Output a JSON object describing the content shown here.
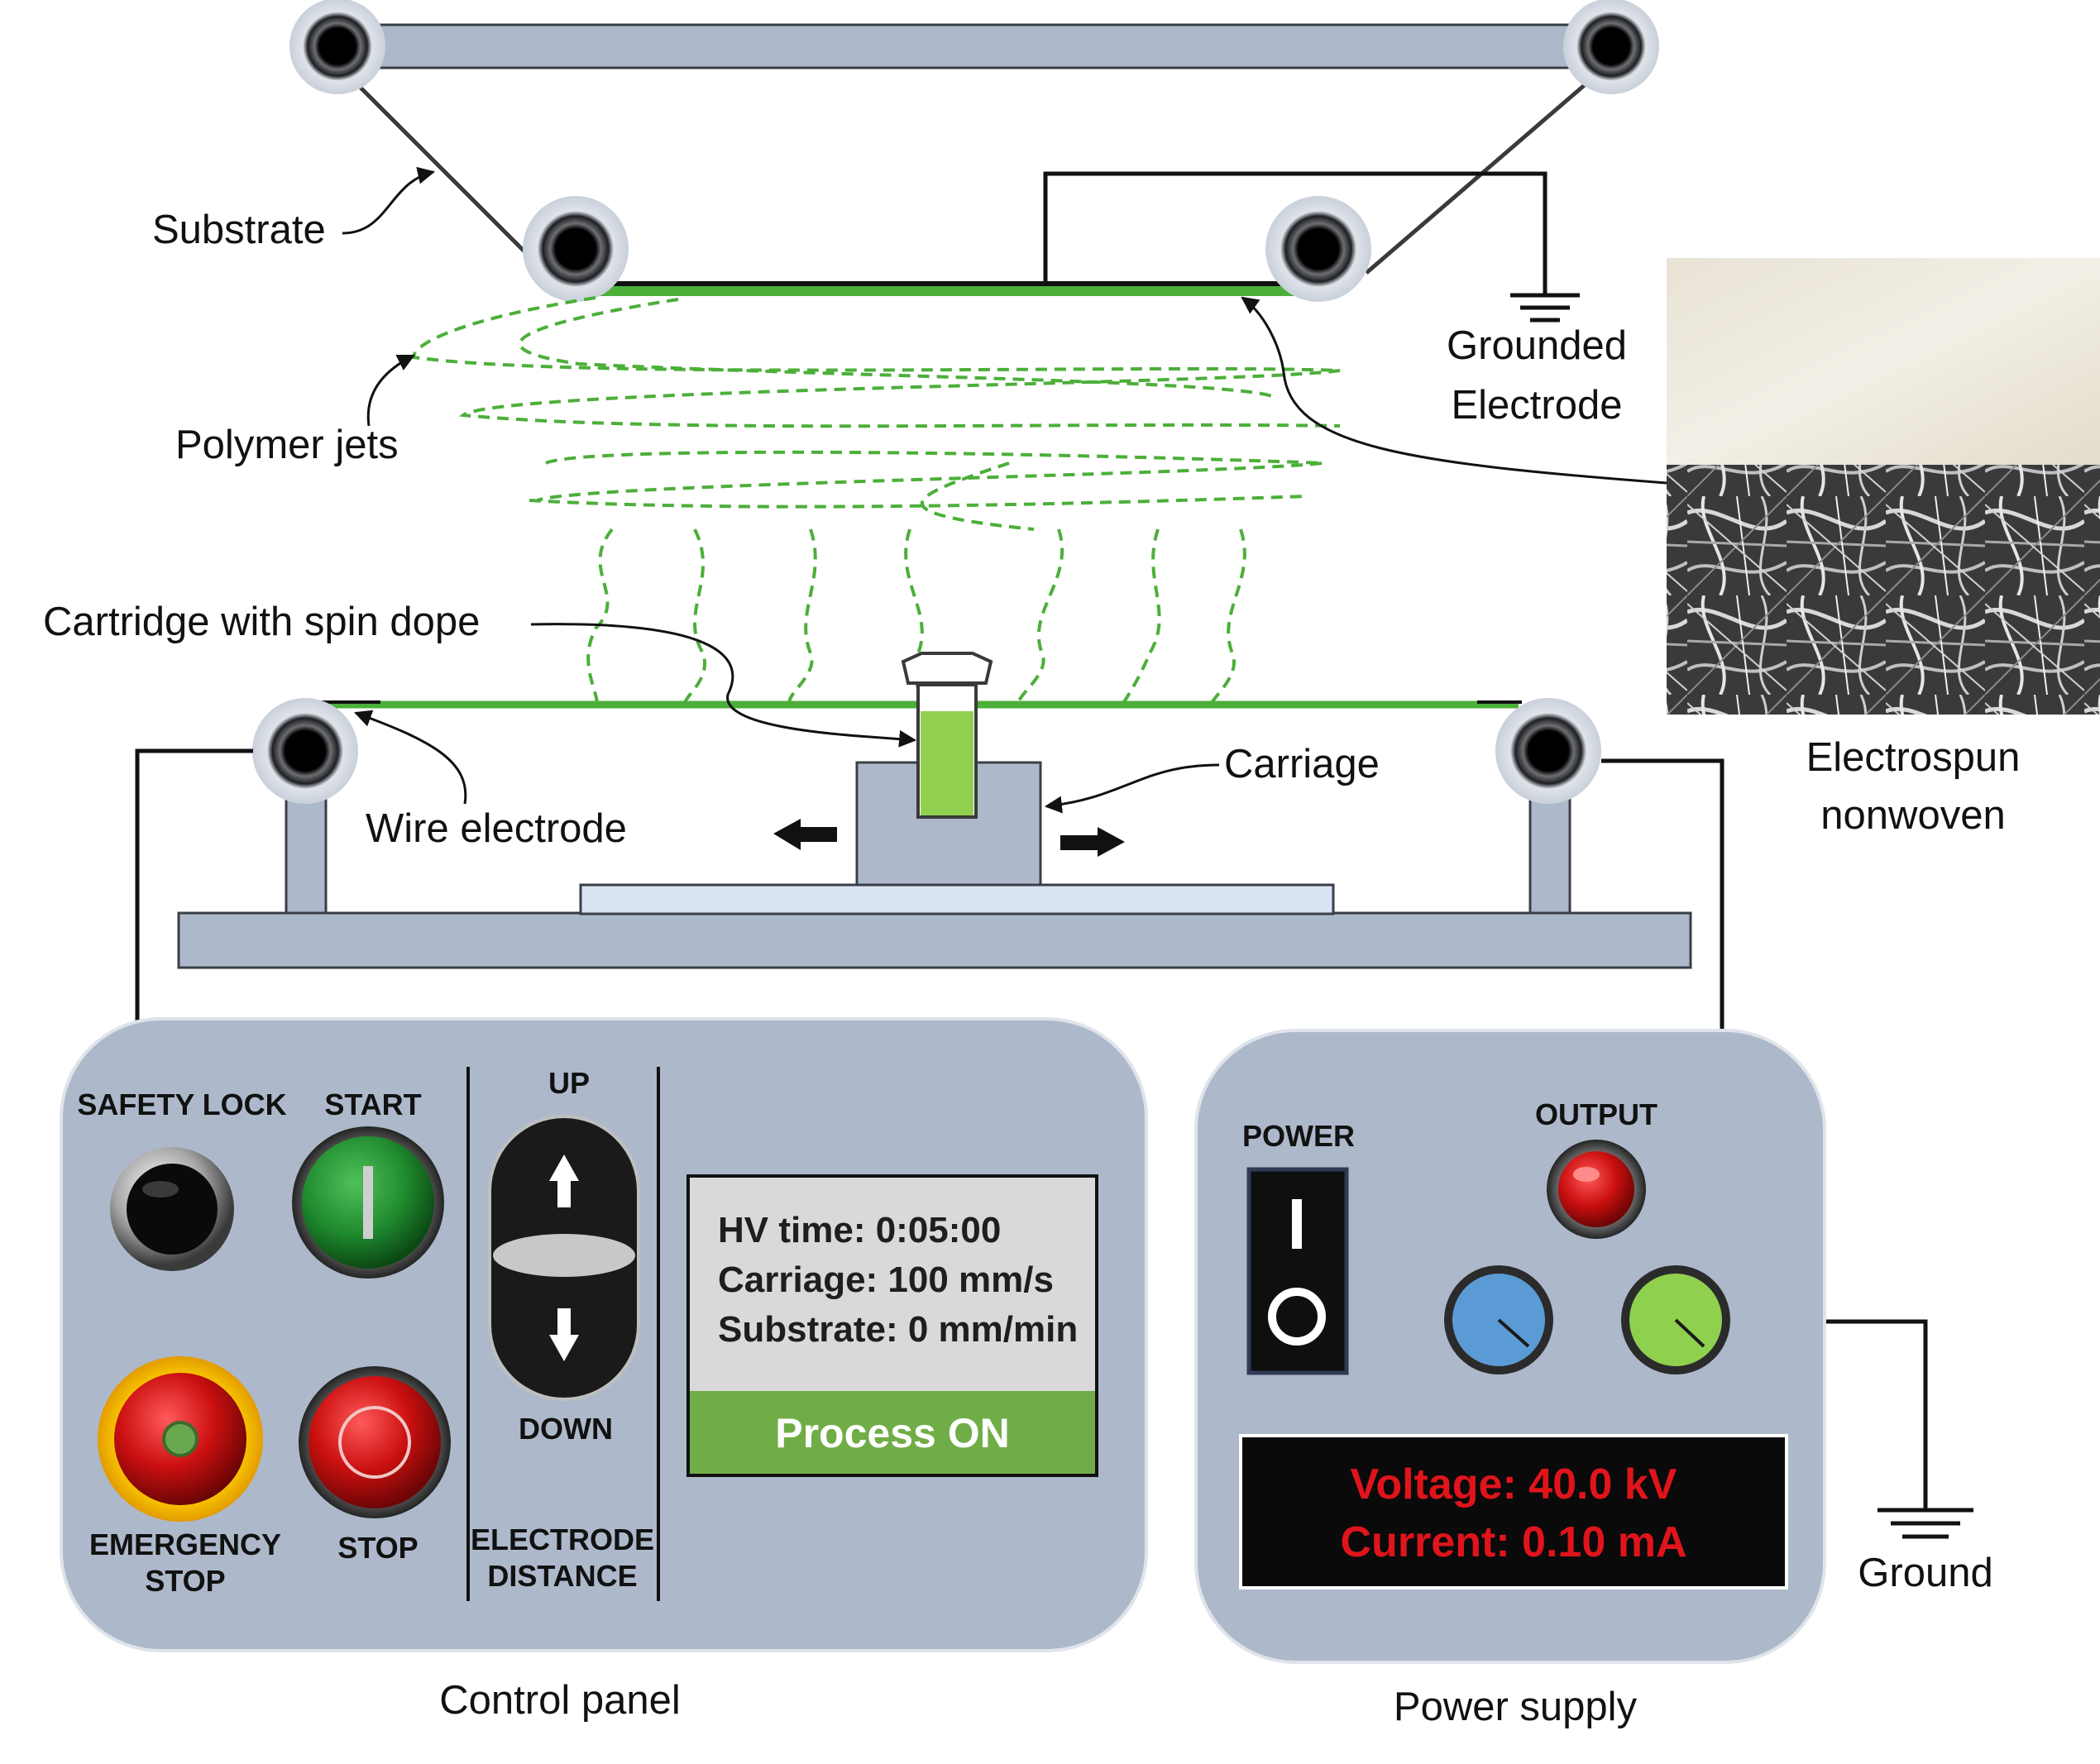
{
  "labels": {
    "substrate": "Substrate",
    "grounded_electrode_line1": "Grounded",
    "grounded_electrode_line2": "Electrode",
    "polymer_jets": "Polymer jets",
    "cartridge": "Cartridge with spin dope",
    "carriage": "Carriage",
    "wire_electrode": "Wire electrode",
    "electrospun_line1": "Electrospun",
    "electrospun_line2": "nonwoven",
    "control_panel": "Control panel",
    "power_supply": "Power supply",
    "ground": "Ground"
  },
  "control_panel": {
    "safety_lock": "SAFETY LOCK",
    "start": "START",
    "emergency_stop_line1": "EMERGENCY",
    "emergency_stop_line2": "STOP",
    "stop": "STOP",
    "up": "UP",
    "down": "DOWN",
    "electrode_distance_line1": "ELECTRODE",
    "electrode_distance_line2": "DISTANCE",
    "display": {
      "hv_time": "HV time: 0:05:00",
      "carriage": "Carriage: 100 mm/s",
      "substrate": "Substrate: 0 mm/min",
      "status": "Process ON"
    }
  },
  "power_supply_panel": {
    "power": "POWER",
    "output": "OUTPUT",
    "voltage": "Voltage: 40.0 kV",
    "current": "Current: 0.10 mA"
  },
  "colors": {
    "frame_gray": "#adb9ca",
    "dark_outline": "#3a3f47",
    "fiber_green": "#4caf3a",
    "dope_green": "#92d050",
    "status_green": "#70ad47",
    "start_green": "#1f8a2e",
    "stop_red": "#cc1010",
    "knob_blue": "#5b9bd5",
    "knob_green": "#8fd14f",
    "readout_red": "#e0141b",
    "lcd_bg": "#d9d9d9"
  }
}
